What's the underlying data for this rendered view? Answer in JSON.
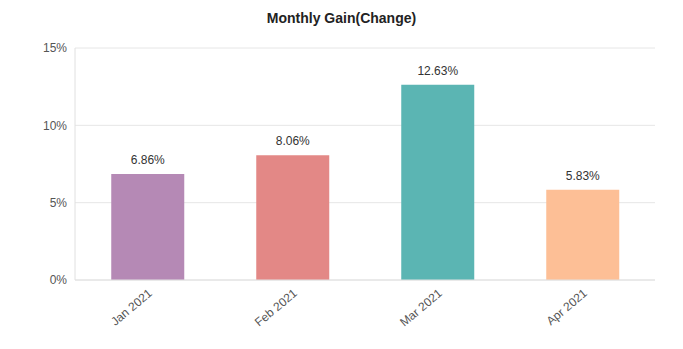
{
  "chart_data": {
    "type": "bar",
    "title": "Monthly Gain(Change)",
    "categories": [
      "Jan 2021",
      "Feb 2021",
      "Mar 2021",
      "Apr 2021"
    ],
    "values": [
      6.86,
      8.06,
      12.63,
      5.83
    ],
    "value_labels": [
      "6.86%",
      "8.06%",
      "12.63%",
      "5.83%"
    ],
    "colors": [
      "#b589b5",
      "#e38886",
      "#5bb5b3",
      "#fdbf96"
    ],
    "ylim": [
      0,
      15
    ],
    "yticks": [
      {
        "value": 0,
        "label": "0%"
      },
      {
        "value": 5,
        "label": "5%"
      },
      {
        "value": 10,
        "label": "10%"
      },
      {
        "value": 15,
        "label": "15%"
      }
    ],
    "grid": true,
    "data_labels": true
  }
}
